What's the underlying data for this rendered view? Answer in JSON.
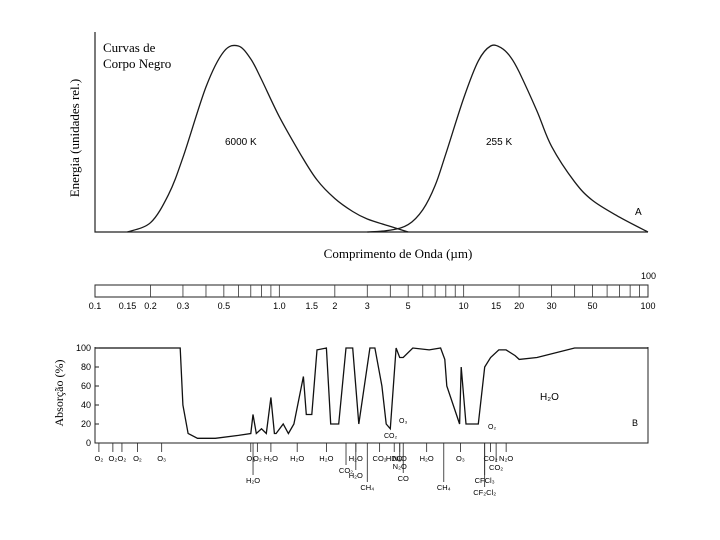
{
  "chart_data": [
    {
      "panel": "A",
      "type": "line",
      "title": "Curvas de\nCorpo Negro",
      "xlabel": "Comprimento de Onda (µm)",
      "ylabel": "Energia (unidades rel.)",
      "x_scale": "log",
      "xlim": [
        0.1,
        100
      ],
      "ylim": [
        0,
        1
      ],
      "grid": false,
      "series": [
        {
          "name": "6000 K",
          "x": [
            0.15,
            0.2,
            0.25,
            0.3,
            0.4,
            0.5,
            0.6,
            0.7,
            0.8,
            1.0,
            1.3,
            1.6,
            2.0,
            2.5,
            3.0,
            4.0,
            5.0
          ],
          "values": [
            0.0,
            0.05,
            0.2,
            0.4,
            0.78,
            0.97,
            1.0,
            0.93,
            0.82,
            0.62,
            0.42,
            0.28,
            0.18,
            0.11,
            0.07,
            0.03,
            0.0
          ]
        },
        {
          "name": "255 K",
          "x": [
            3.0,
            4.0,
            5.0,
            6.0,
            7.0,
            8.0,
            10.0,
            12.0,
            14.0,
            16.0,
            18.0,
            20.0,
            25.0,
            30.0,
            40.0,
            50.0,
            70.0,
            100.0
          ],
          "values": [
            0.0,
            0.01,
            0.04,
            0.12,
            0.25,
            0.42,
            0.72,
            0.92,
            1.0,
            0.99,
            0.94,
            0.86,
            0.65,
            0.46,
            0.27,
            0.17,
            0.08,
            0.0
          ]
        }
      ],
      "annotations": [
        "6000 K",
        "255 K",
        "A"
      ]
    },
    {
      "panel": "scale",
      "type": "axis",
      "ticks": [
        "0.1",
        "0.15",
        "0.2",
        "0.3",
        "0.5",
        "1.0",
        "1.5",
        "2",
        "3",
        "5",
        "10",
        "15",
        "20",
        "30",
        "50",
        "100"
      ],
      "end_label": "100"
    },
    {
      "panel": "B",
      "type": "area",
      "ylabel": "Absorção (%)",
      "ylim": [
        0,
        100
      ],
      "yticks": [
        "0",
        "20",
        "40",
        "60",
        "80",
        "100"
      ],
      "x_scale": "log",
      "xlim": [
        0.1,
        100
      ],
      "x": [
        0.1,
        0.29,
        0.3,
        0.32,
        0.36,
        0.45,
        0.6,
        0.7,
        0.72,
        0.75,
        0.8,
        0.85,
        0.9,
        0.94,
        0.96,
        1.05,
        1.12,
        1.2,
        1.35,
        1.4,
        1.5,
        1.6,
        1.8,
        1.9,
        2.1,
        2.3,
        2.5,
        2.7,
        3.1,
        3.3,
        3.6,
        3.8,
        4.0,
        4.3,
        4.5,
        4.7,
        5.3,
        6.5,
        7.5,
        7.9,
        8.1,
        9.5,
        9.7,
        10.3,
        12.0,
        13.0,
        14.0,
        15.5,
        17.0,
        19.0,
        20.0,
        25.0,
        40.0,
        100.0
      ],
      "values": [
        100,
        100,
        40,
        10,
        5,
        5,
        8,
        10,
        30,
        10,
        15,
        10,
        48,
        10,
        10,
        20,
        10,
        20,
        70,
        30,
        30,
        98,
        100,
        20,
        20,
        100,
        100,
        20,
        100,
        100,
        60,
        20,
        15,
        100,
        90,
        90,
        100,
        98,
        100,
        88,
        60,
        20,
        80,
        20,
        20,
        80,
        90,
        98,
        98,
        92,
        88,
        90,
        100,
        100
      ],
      "annotations": [
        "H₂O",
        "B",
        "O₃",
        "CO₂",
        "O₂"
      ],
      "absorbers_top": [
        "O₂",
        "O₂",
        "O₂",
        "O₂",
        "O₃",
        "O₂",
        "O₂",
        "H₂O",
        "H₂O",
        "H₂O",
        "H₂O",
        "CO₂",
        "HDO",
        "N₂O",
        "H₂O",
        "O₃",
        "CO₂",
        "N₂O"
      ],
      "absorbers_bottom": [
        "H₂O",
        "CO₂",
        "H₂O",
        "CH₄",
        "CO",
        "N₂O",
        "CH₄",
        "CFCl₃",
        "CF₂Cl₂",
        "CO₂"
      ]
    }
  ]
}
